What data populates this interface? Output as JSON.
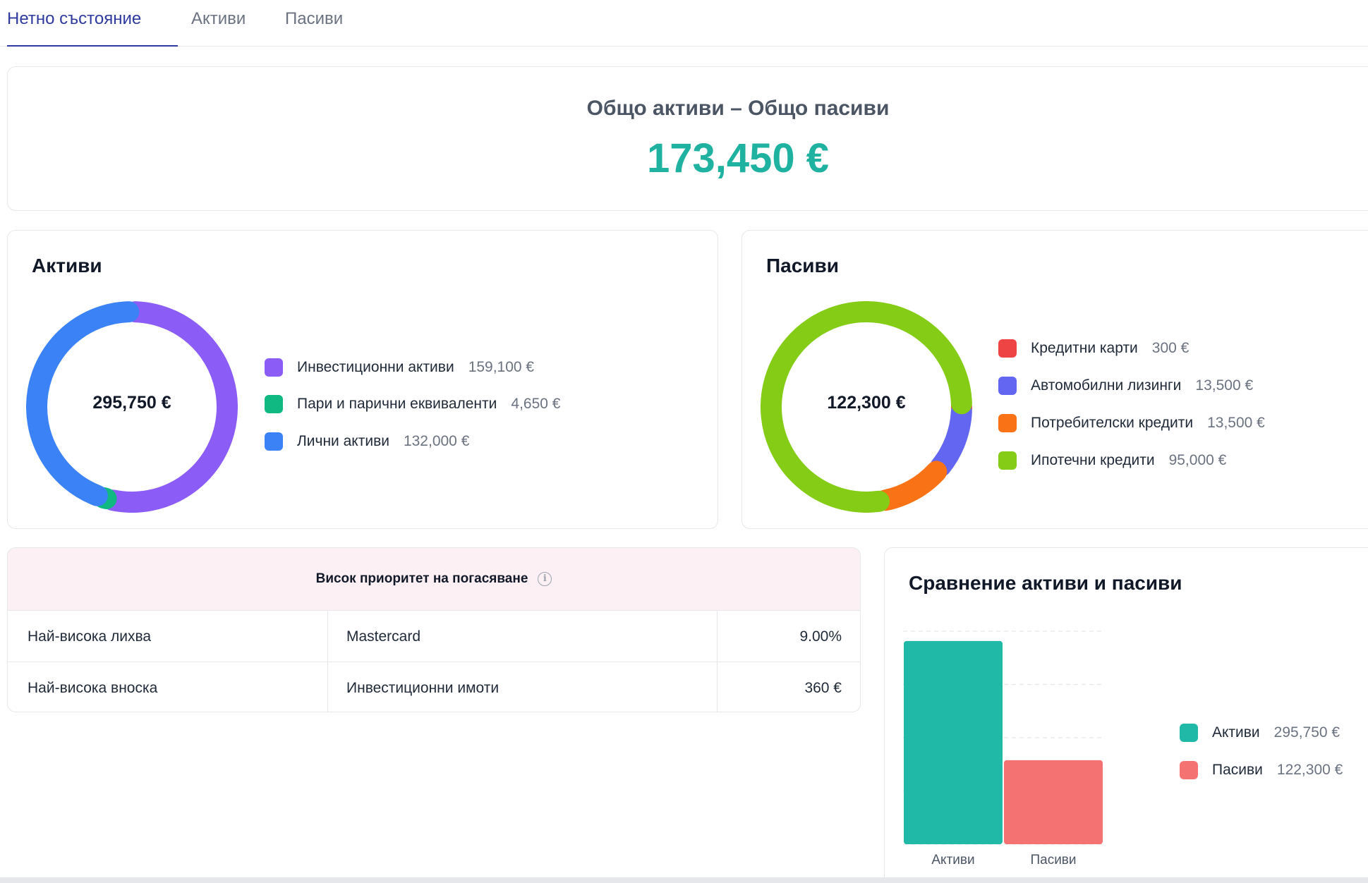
{
  "tabs": [
    {
      "label": "Нетно състояние",
      "active": true
    },
    {
      "label": "Активи",
      "active": false
    },
    {
      "label": "Пасиви",
      "active": false
    }
  ],
  "summary": {
    "label": "Общо активи – Общо пасиви",
    "value": "173,450 €"
  },
  "assets": {
    "title": "Активи",
    "total": "295,750 €",
    "items": [
      {
        "label": "Инвестиционни активи",
        "value": "159,100 €",
        "color": "#8b5cf6",
        "amount": 159100
      },
      {
        "label": "Пари и парични еквиваленти",
        "value": "4,650 €",
        "color": "#10b981",
        "amount": 4650
      },
      {
        "label": "Лични активи",
        "value": "132,000 €",
        "color": "#3b82f6",
        "amount": 132000
      }
    ]
  },
  "liabilities": {
    "title": "Пасиви",
    "total": "122,300 €",
    "items": [
      {
        "label": "Кредитни карти",
        "value": "300 €",
        "color": "#ef4444",
        "amount": 300
      },
      {
        "label": "Автомобилни лизинги",
        "value": "13,500 €",
        "color": "#6366f1",
        "amount": 13500
      },
      {
        "label": "Потребителски кредити",
        "value": "13,500 €",
        "color": "#f97316",
        "amount": 13500
      },
      {
        "label": "Ипотечни кредити",
        "value": "95,000 €",
        "color": "#84cc16",
        "amount": 95000
      }
    ]
  },
  "priority": {
    "title": "Висок приоритет на погасяване",
    "rows": [
      {
        "label": "Най-висока лихва",
        "name": "Mastercard",
        "value": "9.00%"
      },
      {
        "label": "Най-висока вноска",
        "name": "Инвестиционни имоти",
        "value": "360 €"
      }
    ]
  },
  "comparison": {
    "title": "Сравнение активи и пасиви",
    "legend": [
      {
        "label": "Активи",
        "value": "295,750 €",
        "color": "#20b8a6"
      },
      {
        "label": "Пасиви",
        "value": "122,300 €",
        "color": "#f47272"
      }
    ]
  },
  "chart_data": [
    {
      "type": "pie",
      "title": "Активи",
      "categories": [
        "Инвестиционни активи",
        "Пари и парични еквиваленти",
        "Лични активи"
      ],
      "values": [
        159100,
        4650,
        132000
      ]
    },
    {
      "type": "pie",
      "title": "Пасиви",
      "categories": [
        "Кредитни карти",
        "Автомобилни лизинги",
        "Потребителски кредити",
        "Ипотечни кредити"
      ],
      "values": [
        300,
        13500,
        13500,
        95000
      ]
    },
    {
      "type": "bar",
      "title": "Сравнение активи и пасиви",
      "categories": [
        "Активи",
        "Пасиви"
      ],
      "values": [
        295750,
        122300
      ],
      "ylim": [
        0,
        310000
      ],
      "grid": true,
      "legend": "right"
    }
  ]
}
